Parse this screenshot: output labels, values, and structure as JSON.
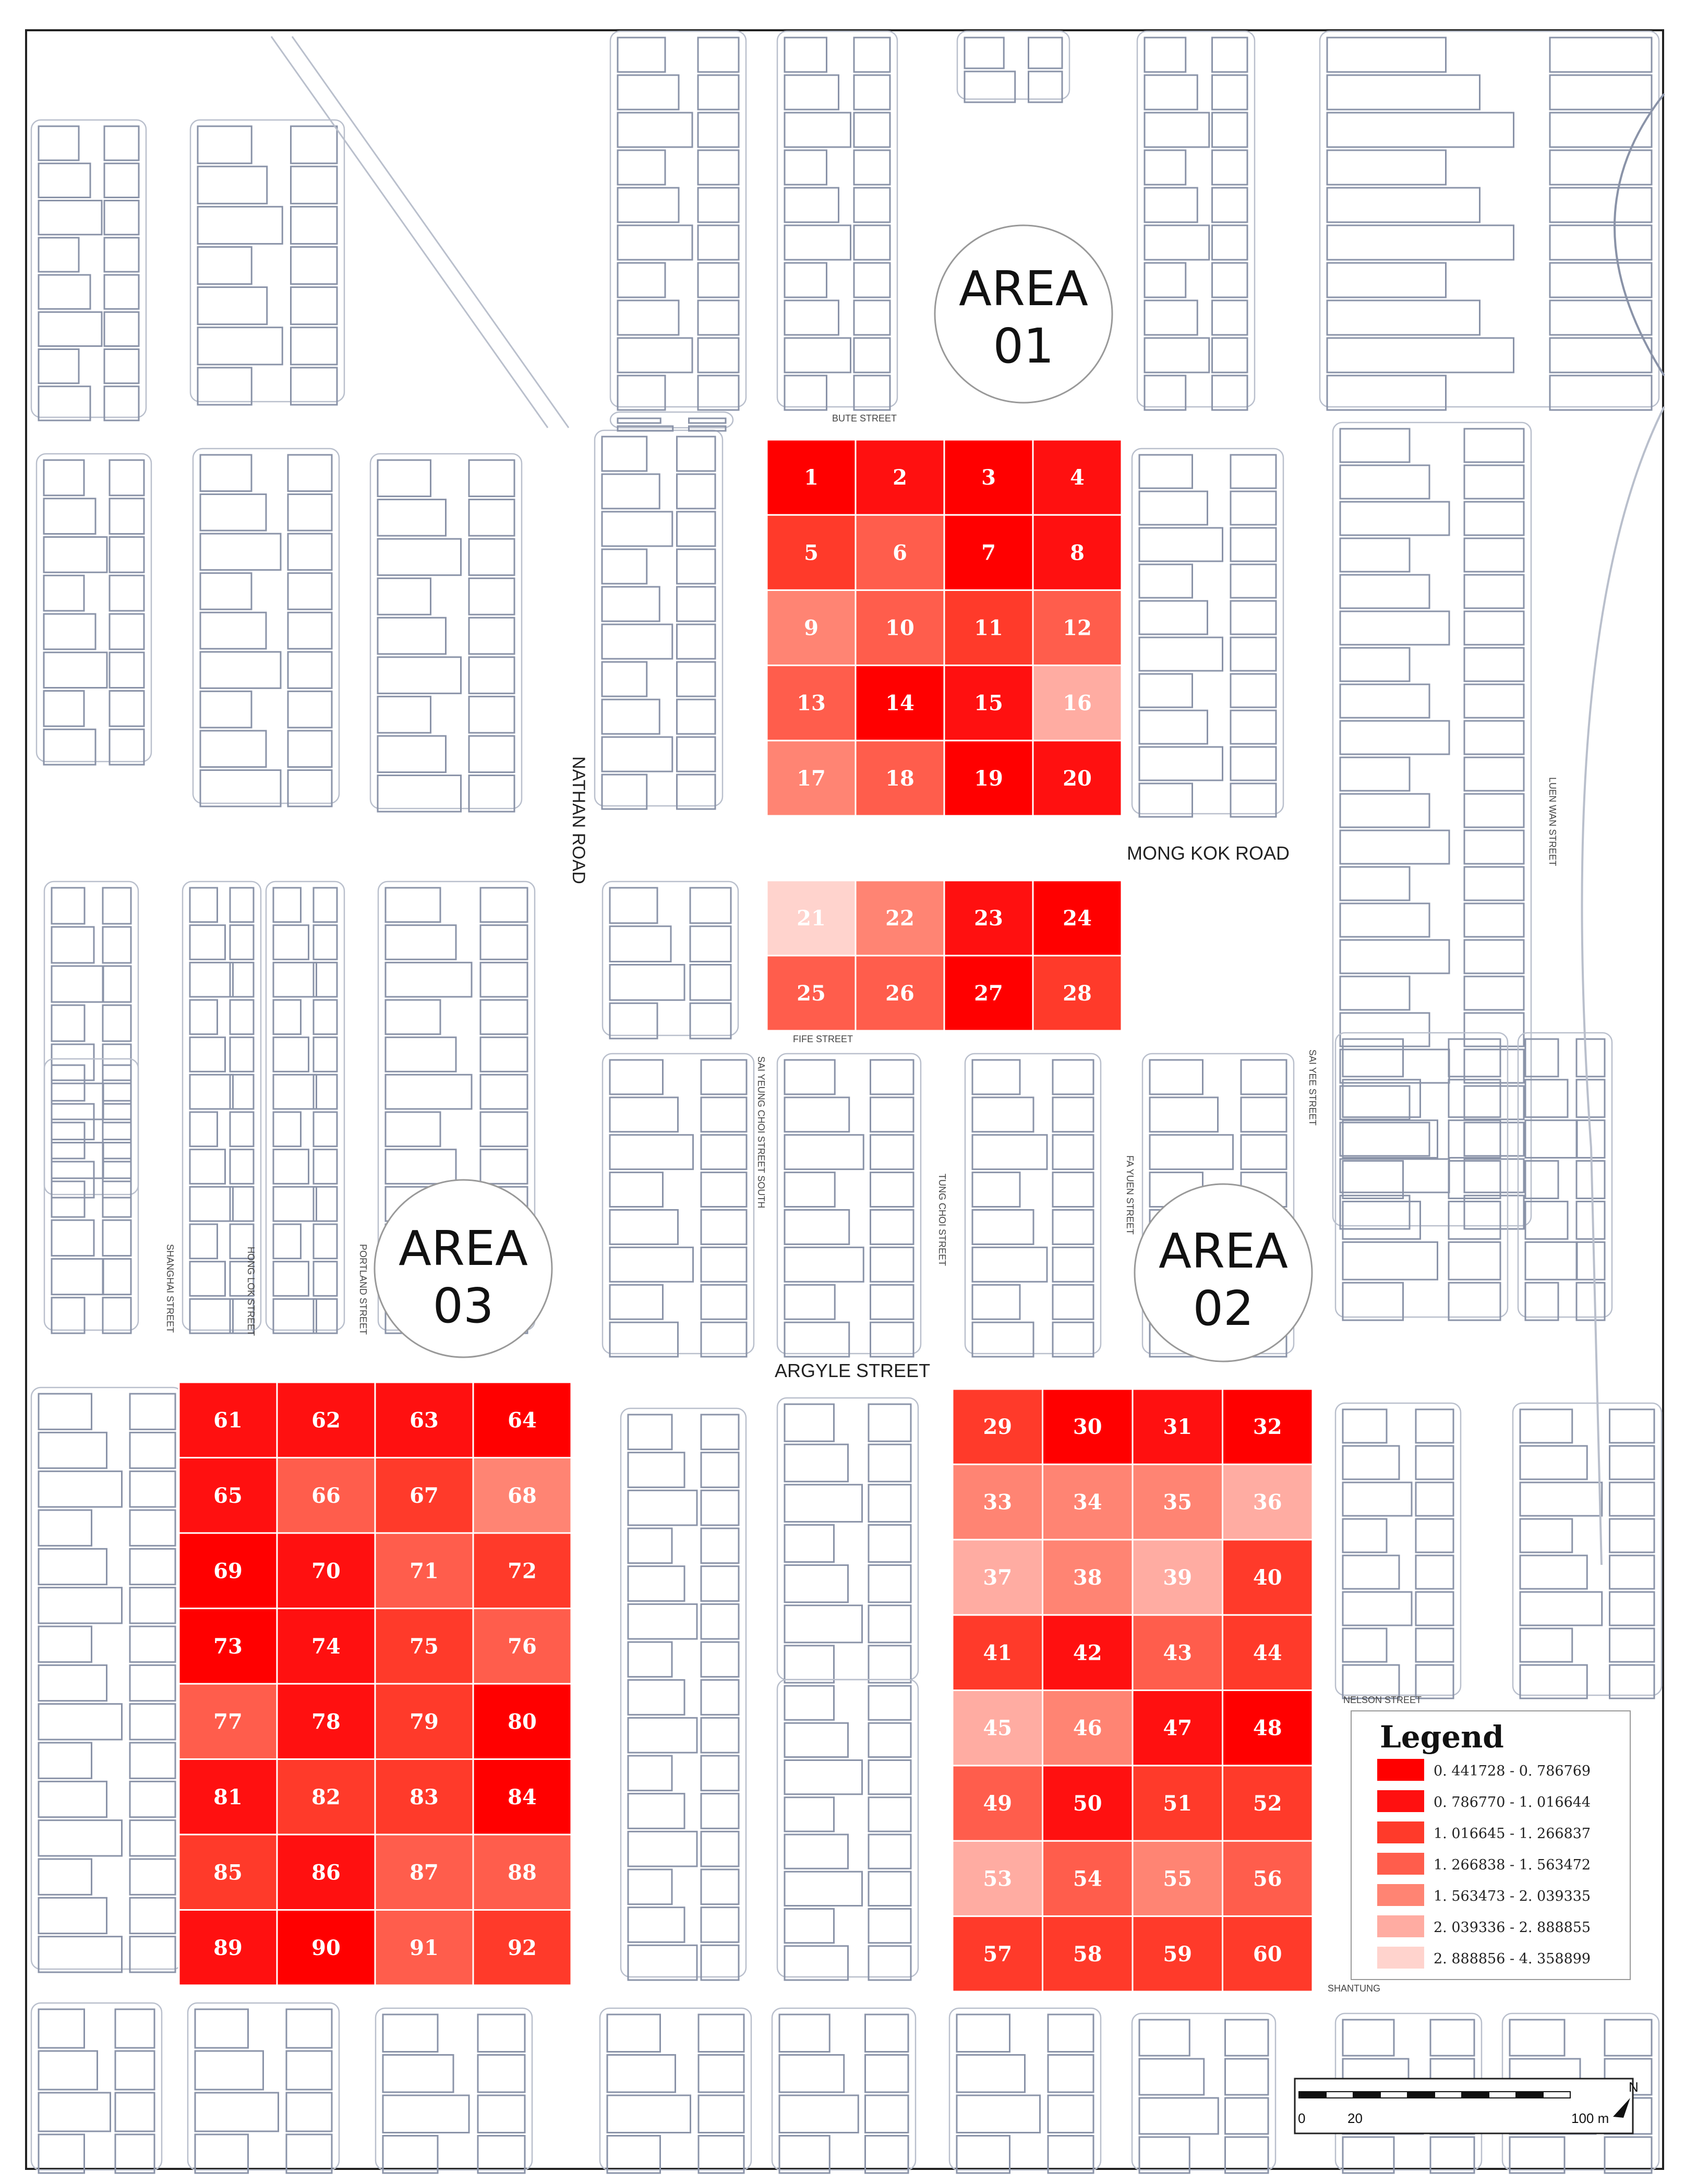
{
  "streets": {
    "bute": "BUTE STREET",
    "nathan": "NATHAN ROAD",
    "mong_kok": "MONG KOK ROAD",
    "fife": "FIFE STREET",
    "sai_yee": "SAI YEE STREET",
    "sai_yeung_choi": "SAI YEUNG CHOI STREET SOUTH",
    "tung_choi": "TUNG CHOI STREET",
    "fa_yuen": "FA YUEN STREET",
    "portland": "PORTLAND STREET",
    "shanghai": "SHANGHAI STREET",
    "hong_lok": "HONG LOK STREET",
    "argyle": "ARGYLE STREET",
    "nelson": "NELSON STREET",
    "shantung": "SHANTUNG",
    "luen_wan": "LUEN WAN STREET"
  },
  "areas": [
    {
      "line1": "AREA",
      "line2": "01"
    },
    {
      "line1": "AREA",
      "line2": "02"
    },
    {
      "line1": "AREA",
      "line2": "03"
    }
  ],
  "legend": {
    "title": "Legend",
    "classes": [
      {
        "label": "0. 441728  -  0. 786769",
        "color": "#ff0000"
      },
      {
        "label": "0. 786770  -  1. 016644",
        "color": "#ff1010"
      },
      {
        "label": "1. 016645  -  1. 266837",
        "color": "#ff3a2a"
      },
      {
        "label": "1. 266838  -  1. 563472",
        "color": "#ff5d4c"
      },
      {
        "label": "1. 563473  -  2. 039335",
        "color": "#ff8473"
      },
      {
        "label": "2. 039336  -  2. 888855",
        "color": "#ffaca2"
      },
      {
        "label": "2. 888856  -  4. 358899",
        "color": "#ffd3cd"
      }
    ]
  },
  "grids": [
    {
      "area": "01",
      "first": 1,
      "rows": 5,
      "cols": 4,
      "classes": [
        0,
        1,
        0,
        1,
        2,
        3,
        0,
        1,
        4,
        3,
        2,
        3,
        3,
        0,
        1,
        5,
        4,
        3,
        0,
        1
      ]
    },
    {
      "area": "01",
      "first": 21,
      "rows": 2,
      "cols": 4,
      "classes": [
        6,
        4,
        1,
        0,
        3,
        3,
        0,
        2
      ]
    },
    {
      "area": "02",
      "first": 29,
      "rows": 8,
      "cols": 4,
      "classes": [
        2,
        0,
        1,
        0,
        4,
        4,
        4,
        5,
        5,
        4,
        5,
        2,
        2,
        1,
        3,
        2,
        5,
        4,
        1,
        0,
        3,
        1,
        2,
        2,
        5,
        3,
        4,
        3,
        2,
        2,
        2,
        2
      ]
    },
    {
      "area": "03",
      "first": 61,
      "rows": 8,
      "cols": 4,
      "classes": [
        1,
        1,
        1,
        0,
        1,
        3,
        2,
        4,
        0,
        1,
        3,
        2,
        0,
        1,
        2,
        3,
        3,
        1,
        2,
        0,
        1,
        2,
        2,
        0,
        2,
        1,
        3,
        3,
        1,
        0,
        3,
        2
      ]
    }
  ],
  "scale_bar": {
    "labels": [
      "0",
      "20",
      "100 m"
    ]
  },
  "north_label": "N"
}
